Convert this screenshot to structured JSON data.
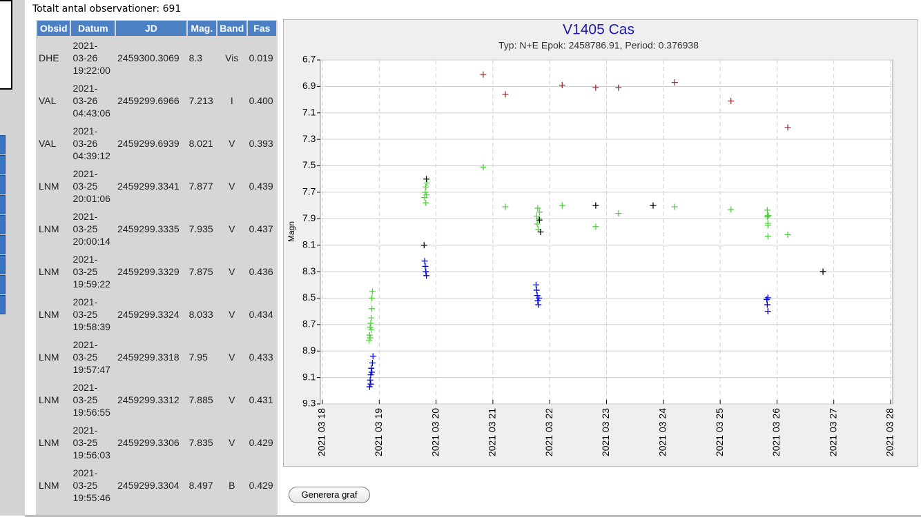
{
  "summary": "Totalt antal observationer: 691",
  "table": {
    "headers": [
      "Obsid",
      "Datum",
      "JD",
      "Mag.",
      "Band",
      "Fas"
    ],
    "rows": [
      [
        "DHE",
        "2021-\n03-26\n19:22:00",
        "2459300.3069",
        "8.3",
        "Vis",
        "0.019"
      ],
      [
        "VAL",
        "2021-\n03-26\n04:43:06",
        "2459299.6966",
        "7.213",
        "I",
        "0.400"
      ],
      [
        "VAL",
        "2021-\n03-26\n04:39:12",
        "2459299.6939",
        "8.021",
        "V",
        "0.393"
      ],
      [
        "LNM",
        "2021-\n03-25\n20:01:06",
        "2459299.3341",
        "7.877",
        "V",
        "0.439"
      ],
      [
        "LNM",
        "2021-\n03-25\n20:00:14",
        "2459299.3335",
        "7.935",
        "V",
        "0.437"
      ],
      [
        "LNM",
        "2021-\n03-25\n19:59:22",
        "2459299.3329",
        "7.875",
        "V",
        "0.436"
      ],
      [
        "LNM",
        "2021-\n03-25\n19:58:39",
        "2459299.3324",
        "8.033",
        "V",
        "0.434"
      ],
      [
        "LNM",
        "2021-\n03-25\n19:57:47",
        "2459299.3318",
        "7.95",
        "V",
        "0.433"
      ],
      [
        "LNM",
        "2021-\n03-25\n19:56:55",
        "2459299.3312",
        "7.885",
        "V",
        "0.431"
      ],
      [
        "LNM",
        "2021-\n03-25\n19:56:03",
        "2459299.3306",
        "7.835",
        "V",
        "0.429"
      ],
      [
        "LNM",
        "2021-\n03-25\n19:55:46",
        "2459299.3304",
        "8.497",
        "B",
        "0.429"
      ]
    ]
  },
  "button": "Generera graf",
  "chart_data": {
    "type": "scatter",
    "title": "V1405 Cas",
    "subtitle": "Typ: N+E Epok: 2458786.91, Period: 0.376938",
    "y_label": "Magn",
    "invert_y": true,
    "grid": true,
    "xlim": [
      18,
      28
    ],
    "xticks": [
      {
        "value": 18,
        "label": "2021 03 18"
      },
      {
        "value": 19,
        "label": "2021 03 19"
      },
      {
        "value": 20,
        "label": "2021 03 20"
      },
      {
        "value": 21,
        "label": "2021 03 21"
      },
      {
        "value": 22,
        "label": "2021 03 22"
      },
      {
        "value": 23,
        "label": "2021 03 23"
      },
      {
        "value": 24,
        "label": "2021 03 24"
      },
      {
        "value": 25,
        "label": "2021 03 25"
      },
      {
        "value": 26,
        "label": "2021 03 26"
      },
      {
        "value": 27,
        "label": "2021 03 27"
      },
      {
        "value": 28,
        "label": "2021 03 28"
      }
    ],
    "ylim": [
      6.7,
      9.3
    ],
    "yticks": [
      6.7,
      6.9,
      7.1,
      7.3,
      7.5,
      7.7,
      7.9,
      8.1,
      8.3,
      8.5,
      8.7,
      8.9,
      9.1,
      9.3
    ],
    "series": [
      {
        "color": "#993333",
        "x": [
          20.83,
          21.22,
          22.22,
          22.81,
          23.21,
          24.2,
          25.19,
          26.19
        ],
        "values": [
          6.81,
          6.96,
          6.89,
          6.91,
          6.91,
          6.87,
          7.01,
          7.21
        ]
      },
      {
        "color": "#55cc44",
        "x": [
          18.82,
          18.83,
          18.84,
          18.84,
          18.85,
          18.86,
          18.86,
          18.87,
          18.87,
          18.88,
          19.8,
          19.81,
          19.82,
          19.82,
          19.83,
          19.84,
          20.83,
          21.22,
          21.77,
          21.78,
          21.79,
          21.8,
          21.81,
          21.82,
          22.22,
          22.81,
          23.21,
          24.2,
          25.19,
          25.83,
          25.83,
          25.84,
          25.84,
          25.84,
          25.84,
          25.85,
          26.19
        ],
        "values": [
          8.82,
          8.78,
          8.72,
          8.8,
          8.69,
          8.65,
          8.74,
          8.58,
          8.5,
          8.45,
          7.74,
          7.7,
          7.78,
          7.66,
          7.72,
          7.63,
          7.51,
          7.81,
          7.88,
          7.94,
          7.82,
          7.98,
          7.9,
          7.85,
          7.8,
          7.96,
          7.86,
          7.81,
          7.83,
          7.835,
          7.885,
          7.95,
          8.033,
          7.875,
          7.935,
          7.877,
          8.02
        ]
      },
      {
        "color": "#0000dd",
        "x": [
          18.83,
          18.84,
          18.85,
          18.85,
          18.86,
          18.87,
          18.88,
          18.89,
          19.8,
          19.81,
          19.82,
          19.83,
          21.76,
          21.77,
          21.78,
          21.79,
          21.8,
          21.81,
          25.82,
          25.83,
          25.84,
          25.84
        ],
        "values": [
          9.17,
          9.12,
          9.08,
          9.15,
          9.03,
          9.06,
          8.99,
          8.94,
          8.22,
          8.26,
          8.3,
          8.33,
          8.4,
          8.44,
          8.48,
          8.52,
          8.55,
          8.5,
          8.51,
          8.55,
          8.497,
          8.6
        ]
      },
      {
        "color": "#000000",
        "x": [
          19.79,
          19.83,
          21.82,
          21.84,
          22.81,
          23.82,
          26.81
        ],
        "values": [
          8.1,
          7.6,
          7.91,
          8.0,
          7.8,
          7.8,
          8.3
        ]
      }
    ]
  }
}
